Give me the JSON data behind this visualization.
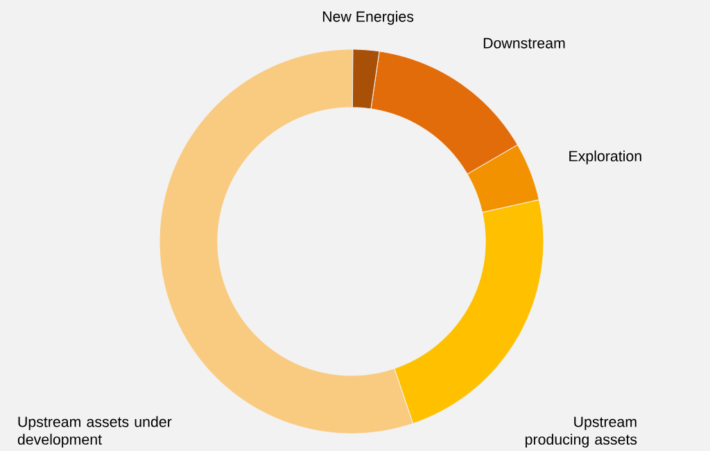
{
  "chart_data": {
    "type": "donut",
    "categories": [
      "New Energies",
      "Downstream",
      "Exploration",
      "Upstream producing assets",
      "Upstream assets under development"
    ],
    "values": [
      2.2,
      14.3,
      4.9,
      23.3,
      55.3
    ],
    "colors": [
      "#a84f08",
      "#e36c0a",
      "#f39200",
      "#ffc000",
      "#f9cb80"
    ]
  }
}
